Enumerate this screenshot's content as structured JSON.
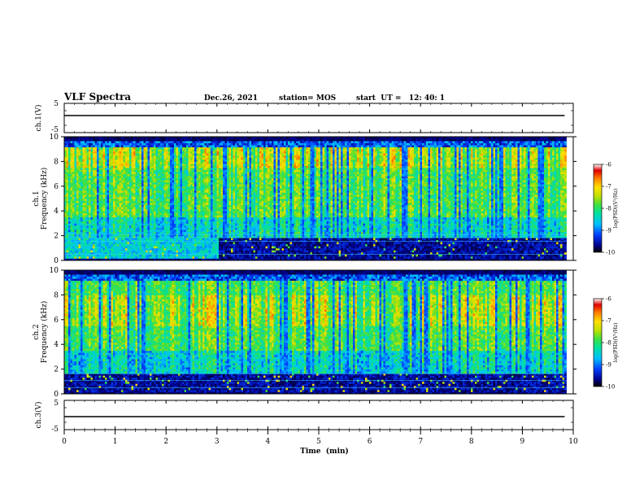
{
  "header": {
    "title": "VLF Spectra",
    "date": "Dec.26, 2021",
    "station": "station= MOS",
    "start_ut": "start  UT =   12: 40: 1"
  },
  "chart_data": {
    "type": "heatmap",
    "title": "VLF Spectra",
    "x_axis": {
      "label": "Time  (min)",
      "range": [
        0,
        10
      ],
      "ticks": [
        "0",
        "1",
        "2",
        "3",
        "4",
        "5",
        "6",
        "7",
        "8",
        "9",
        "10"
      ],
      "data_end_min": 9.83
    },
    "panels": [
      {
        "id": "ch1-waveform",
        "type": "line",
        "ylabel": "ch.1(V)",
        "ylim": [
          -5,
          5
        ],
        "yticks": [
          "5",
          "-5"
        ],
        "trace_level": 0,
        "color": "#000000"
      },
      {
        "id": "ch1-spectrogram",
        "type": "heatmap",
        "ylabel": "ch.1\nFrequency  (kHz)",
        "ylabel_line1": "ch.1",
        "ylabel_line2": "Frequency  (kHz)",
        "ylim": [
          0,
          10
        ],
        "yticks": [
          "0",
          "2",
          "4",
          "6",
          "8",
          "10"
        ],
        "colorbar": {
          "label": "log(PSD)(V²/Hz)",
          "range": [
            -10,
            -6
          ],
          "ticks": [
            "-6",
            "-7",
            "-8",
            "-9",
            "-10"
          ]
        },
        "features": {
          "hiss_band_kHz": [
            2.0,
            9.5
          ],
          "intense_band_kHz": [
            7.5,
            9.2
          ],
          "low_frequency_band_kHz": [
            0.5,
            1.9
          ],
          "spectral_lines_kHz": [
            0.5,
            1.55,
            1.85,
            2.1
          ]
        }
      },
      {
        "id": "ch2-spectrogram",
        "type": "heatmap",
        "ylabel": "ch.2\nFrequency  (kHz)",
        "ylabel_line1": "ch.2",
        "ylabel_line2": "Frequency  (kHz)",
        "ylim": [
          0,
          10
        ],
        "yticks": [
          "0",
          "2",
          "4",
          "6",
          "8",
          "10"
        ],
        "colorbar": {
          "label": "log(PSD)(V²/Hz)",
          "range": [
            -10,
            -6
          ],
          "ticks": [
            "-6",
            "-7",
            "-8",
            "-9",
            "-10"
          ]
        },
        "features": {
          "hiss_band_kHz": [
            2.0,
            9.5
          ],
          "intense_band_kHz": [
            5.5,
            8.0
          ],
          "low_frequency_band_kHz": [
            0.4,
            1.6
          ],
          "spectral_lines_kHz": [
            0.5,
            1.1,
            1.6
          ]
        }
      },
      {
        "id": "ch3-waveform",
        "type": "line",
        "ylabel": "ch.3(V)",
        "ylim": [
          -5,
          5
        ],
        "yticks": [
          "5",
          "-5"
        ],
        "trace_level": 0,
        "color": "#000000"
      }
    ],
    "colormap": [
      "#000000",
      "#00008c",
      "#0040ff",
      "#00c0ff",
      "#00e0a0",
      "#40e040",
      "#c0e000",
      "#ffe000",
      "#ff8000",
      "#e00000",
      "#ffffff"
    ]
  }
}
